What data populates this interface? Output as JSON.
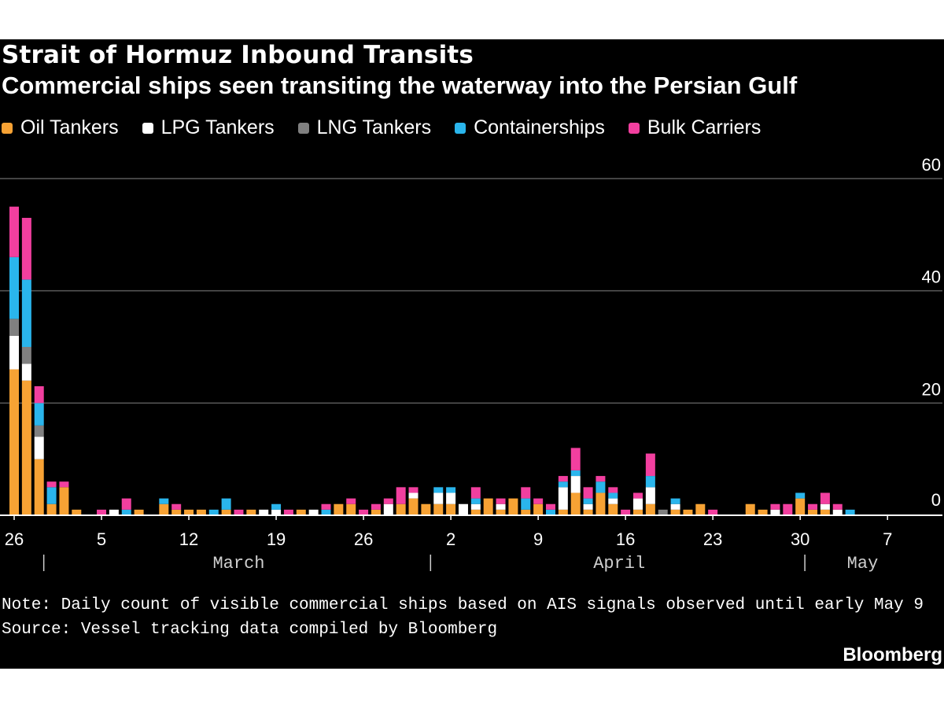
{
  "chart_data": {
    "type": "bar",
    "stacked": true,
    "title": "Strait of Hormuz Inbound Transits",
    "subtitle": "Commercial ships seen transiting the waterway into the Persian Gulf",
    "ylim": [
      0,
      60
    ],
    "y_ticks": [
      "60",
      "40",
      "20",
      "0"
    ],
    "x_ticks": [
      "26",
      "5",
      "12",
      "19",
      "26",
      "2",
      "9",
      "16",
      "23",
      "30",
      "7"
    ],
    "months": [
      "March",
      "April",
      "May"
    ],
    "x_start": "2025-02-26",
    "x_end": "2025-05-09",
    "legend_position": "top-left",
    "grid": true,
    "series": [
      {
        "name": "Oil Tankers",
        "color": "#f7a234"
      },
      {
        "name": "LPG Tankers",
        "color": "#ffffff"
      },
      {
        "name": "LNG Tankers",
        "color": "#808080"
      },
      {
        "name": "Containerships",
        "color": "#2ab5ec"
      },
      {
        "name": "Bulk Carriers",
        "color": "#f23f9f"
      }
    ],
    "days": [
      {
        "date": "2025-02-26",
        "values": [
          26,
          6,
          3,
          11,
          9
        ]
      },
      {
        "date": "2025-02-27",
        "values": [
          24,
          3,
          3,
          12,
          11
        ]
      },
      {
        "date": "2025-02-28",
        "values": [
          10,
          4,
          2,
          4,
          3
        ]
      },
      {
        "date": "2025-03-01",
        "values": [
          2,
          0,
          0,
          3,
          1
        ]
      },
      {
        "date": "2025-03-02",
        "values": [
          5,
          0,
          0,
          0,
          1
        ]
      },
      {
        "date": "2025-03-03",
        "values": [
          1,
          0,
          0,
          0,
          0
        ]
      },
      {
        "date": "2025-03-04",
        "values": [
          0,
          0,
          0,
          0,
          0
        ]
      },
      {
        "date": "2025-03-05",
        "values": [
          0,
          0,
          0,
          0,
          1
        ]
      },
      {
        "date": "2025-03-06",
        "values": [
          0,
          1,
          0,
          0,
          0
        ]
      },
      {
        "date": "2025-03-07",
        "values": [
          0,
          0,
          0,
          1,
          2
        ]
      },
      {
        "date": "2025-03-08",
        "values": [
          1,
          0,
          0,
          0,
          0
        ]
      },
      {
        "date": "2025-03-09",
        "values": [
          0,
          0,
          0,
          0,
          0
        ]
      },
      {
        "date": "2025-03-10",
        "values": [
          2,
          0,
          0,
          1,
          0
        ]
      },
      {
        "date": "2025-03-11",
        "values": [
          1,
          0,
          0,
          0,
          1
        ]
      },
      {
        "date": "2025-03-12",
        "values": [
          1,
          0,
          0,
          0,
          0
        ]
      },
      {
        "date": "2025-03-13",
        "values": [
          1,
          0,
          0,
          0,
          0
        ]
      },
      {
        "date": "2025-03-14",
        "values": [
          0,
          0,
          0,
          1,
          0
        ]
      },
      {
        "date": "2025-03-15",
        "values": [
          1,
          0,
          0,
          2,
          0
        ]
      },
      {
        "date": "2025-03-16",
        "values": [
          0,
          0,
          0,
          0,
          1
        ]
      },
      {
        "date": "2025-03-17",
        "values": [
          1,
          0,
          0,
          0,
          0
        ]
      },
      {
        "date": "2025-03-18",
        "values": [
          0,
          1,
          0,
          0,
          0
        ]
      },
      {
        "date": "2025-03-19",
        "values": [
          0,
          1,
          0,
          1,
          0
        ]
      },
      {
        "date": "2025-03-20",
        "values": [
          0,
          0,
          0,
          0,
          1
        ]
      },
      {
        "date": "2025-03-21",
        "values": [
          1,
          0,
          0,
          0,
          0
        ]
      },
      {
        "date": "2025-03-22",
        "values": [
          0,
          1,
          0,
          0,
          0
        ]
      },
      {
        "date": "2025-03-23",
        "values": [
          0,
          0,
          0,
          1,
          1
        ]
      },
      {
        "date": "2025-03-24",
        "values": [
          2,
          0,
          0,
          0,
          0
        ]
      },
      {
        "date": "2025-03-25",
        "values": [
          2,
          0,
          0,
          0,
          1
        ]
      },
      {
        "date": "2025-03-26",
        "values": [
          0,
          0,
          0,
          0,
          1
        ]
      },
      {
        "date": "2025-03-27",
        "values": [
          1,
          0,
          0,
          0,
          1
        ]
      },
      {
        "date": "2025-03-28",
        "values": [
          0,
          2,
          0,
          0,
          1
        ]
      },
      {
        "date": "2025-03-29",
        "values": [
          2,
          0,
          0,
          0,
          3
        ]
      },
      {
        "date": "2025-03-30",
        "values": [
          3,
          1,
          0,
          0,
          1
        ]
      },
      {
        "date": "2025-03-31",
        "values": [
          2,
          0,
          0,
          0,
          0
        ]
      },
      {
        "date": "2025-04-01",
        "values": [
          2,
          2,
          0,
          1,
          0
        ]
      },
      {
        "date": "2025-04-02",
        "values": [
          2,
          2,
          0,
          1,
          0
        ]
      },
      {
        "date": "2025-04-03",
        "values": [
          0,
          2,
          0,
          0,
          0
        ]
      },
      {
        "date": "2025-04-04",
        "values": [
          1,
          1,
          0,
          1,
          2
        ]
      },
      {
        "date": "2025-04-05",
        "values": [
          3,
          0,
          0,
          0,
          0
        ]
      },
      {
        "date": "2025-04-06",
        "values": [
          1,
          1,
          0,
          0,
          1
        ]
      },
      {
        "date": "2025-04-07",
        "values": [
          3,
          0,
          0,
          0,
          0
        ]
      },
      {
        "date": "2025-04-08",
        "values": [
          1,
          0,
          0,
          2,
          2
        ]
      },
      {
        "date": "2025-04-09",
        "values": [
          2,
          0,
          0,
          0,
          1
        ]
      },
      {
        "date": "2025-04-10",
        "values": [
          0,
          0,
          0,
          1,
          1
        ]
      },
      {
        "date": "2025-04-11",
        "values": [
          1,
          4,
          0,
          1,
          1
        ]
      },
      {
        "date": "2025-04-12",
        "values": [
          4,
          3,
          0,
          1,
          4
        ]
      },
      {
        "date": "2025-04-13",
        "values": [
          1,
          1,
          0,
          1,
          2
        ]
      },
      {
        "date": "2025-04-14",
        "values": [
          4,
          0,
          0,
          2,
          1
        ]
      },
      {
        "date": "2025-04-15",
        "values": [
          2,
          1,
          0,
          1,
          1
        ]
      },
      {
        "date": "2025-04-16",
        "values": [
          0,
          0,
          0,
          0,
          1
        ]
      },
      {
        "date": "2025-04-17",
        "values": [
          1,
          2,
          0,
          0,
          1
        ]
      },
      {
        "date": "2025-04-18",
        "values": [
          2,
          3,
          0,
          2,
          4
        ]
      },
      {
        "date": "2025-04-19",
        "values": [
          0,
          0,
          1,
          0,
          0
        ]
      },
      {
        "date": "2025-04-20",
        "values": [
          1,
          1,
          0,
          1,
          0
        ]
      },
      {
        "date": "2025-04-21",
        "values": [
          1,
          0,
          0,
          0,
          0
        ]
      },
      {
        "date": "2025-04-22",
        "values": [
          2,
          0,
          0,
          0,
          0
        ]
      },
      {
        "date": "2025-04-23",
        "values": [
          0,
          0,
          0,
          0,
          1
        ]
      },
      {
        "date": "2025-04-24",
        "values": [
          0,
          0,
          0,
          0,
          0
        ]
      },
      {
        "date": "2025-04-25",
        "values": [
          0,
          0,
          0,
          0,
          0
        ]
      },
      {
        "date": "2025-04-26",
        "values": [
          2,
          0,
          0,
          0,
          0
        ]
      },
      {
        "date": "2025-04-27",
        "values": [
          1,
          0,
          0,
          0,
          0
        ]
      },
      {
        "date": "2025-04-28",
        "values": [
          0,
          1,
          0,
          0,
          1
        ]
      },
      {
        "date": "2025-04-29",
        "values": [
          0,
          0,
          0,
          0,
          2
        ]
      },
      {
        "date": "2025-04-30",
        "values": [
          3,
          0,
          0,
          1,
          0
        ]
      },
      {
        "date": "2025-05-01",
        "values": [
          1,
          0,
          0,
          0,
          1
        ]
      },
      {
        "date": "2025-05-02",
        "values": [
          1,
          1,
          0,
          0,
          2
        ]
      },
      {
        "date": "2025-05-03",
        "values": [
          0,
          1,
          0,
          0,
          1
        ]
      },
      {
        "date": "2025-05-04",
        "values": [
          0,
          0,
          0,
          1,
          0
        ]
      },
      {
        "date": "2025-05-05",
        "values": [
          0,
          0,
          0,
          0,
          0
        ]
      },
      {
        "date": "2025-05-06",
        "values": [
          0,
          0,
          0,
          0,
          0
        ]
      },
      {
        "date": "2025-05-07",
        "values": [
          0,
          0,
          0,
          0,
          0
        ]
      },
      {
        "date": "2025-05-08",
        "values": [
          0,
          0,
          0,
          0,
          0
        ]
      },
      {
        "date": "2025-05-09",
        "values": [
          0,
          0,
          0,
          0,
          0
        ]
      }
    ]
  },
  "note": "Note: Daily count of visible commercial ships based on AIS signals observed until early May 9",
  "source": "Source: Vessel tracking data compiled by Bloomberg",
  "brand": "Bloomberg",
  "colors": {
    "background": "#000000",
    "gridline": "#5a5a5a",
    "axis": "#ffffff"
  }
}
